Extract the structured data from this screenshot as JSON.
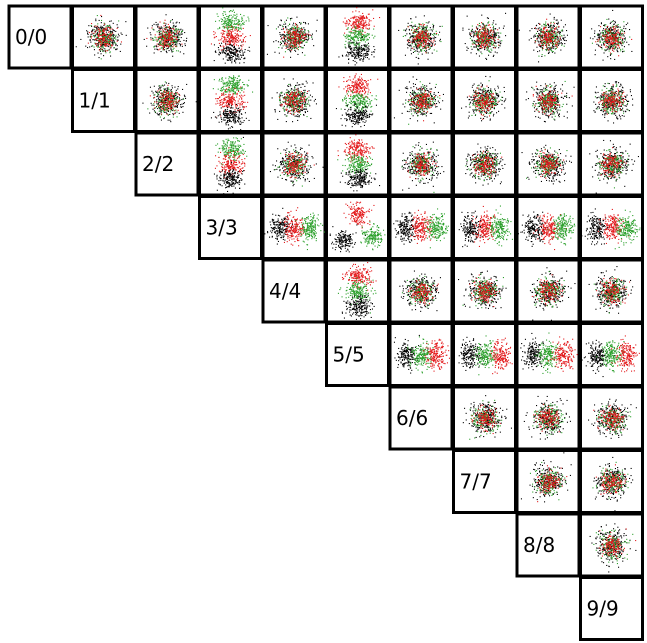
{
  "chart_data": {
    "type": "scatter",
    "title": "",
    "dimensions": [
      "0",
      "1",
      "2",
      "3",
      "4",
      "5",
      "6",
      "7",
      "8",
      "9"
    ],
    "diagonal_labels": [
      "0/0",
      "1/1",
      "2/2",
      "3/3",
      "4/4",
      "5/5",
      "6/6",
      "7/7",
      "8/8",
      "9/9"
    ],
    "layout": "upper-triangle scatter-plot matrix",
    "series": [
      {
        "color": "#000000"
      },
      {
        "color": "#e31a1c"
      },
      {
        "color": "#2ca02c"
      }
    ],
    "panels": [
      {
        "row": 0,
        "col": 1,
        "pattern": "overlap"
      },
      {
        "row": 0,
        "col": 2,
        "pattern": "overlap"
      },
      {
        "row": 0,
        "col": 3,
        "pattern": "vertical",
        "order": [
          "green",
          "red",
          "black"
        ]
      },
      {
        "row": 0,
        "col": 4,
        "pattern": "overlap"
      },
      {
        "row": 0,
        "col": 5,
        "pattern": "vertical",
        "order": [
          "red",
          "green",
          "black"
        ]
      },
      {
        "row": 0,
        "col": 6,
        "pattern": "overlap"
      },
      {
        "row": 0,
        "col": 7,
        "pattern": "overlap"
      },
      {
        "row": 0,
        "col": 8,
        "pattern": "overlap"
      },
      {
        "row": 0,
        "col": 9,
        "pattern": "overlap"
      },
      {
        "row": 1,
        "col": 2,
        "pattern": "overlap"
      },
      {
        "row": 1,
        "col": 3,
        "pattern": "vertical",
        "order": [
          "green",
          "red",
          "black"
        ]
      },
      {
        "row": 1,
        "col": 4,
        "pattern": "overlap"
      },
      {
        "row": 1,
        "col": 5,
        "pattern": "vertical",
        "order": [
          "red",
          "green",
          "black"
        ]
      },
      {
        "row": 1,
        "col": 6,
        "pattern": "overlap"
      },
      {
        "row": 1,
        "col": 7,
        "pattern": "overlap"
      },
      {
        "row": 1,
        "col": 8,
        "pattern": "overlap"
      },
      {
        "row": 1,
        "col": 9,
        "pattern": "overlap"
      },
      {
        "row": 2,
        "col": 3,
        "pattern": "vertical",
        "order": [
          "green",
          "red",
          "black"
        ]
      },
      {
        "row": 2,
        "col": 4,
        "pattern": "overlap"
      },
      {
        "row": 2,
        "col": 5,
        "pattern": "vertical",
        "order": [
          "red",
          "green",
          "black"
        ]
      },
      {
        "row": 2,
        "col": 6,
        "pattern": "overlap"
      },
      {
        "row": 2,
        "col": 7,
        "pattern": "overlap"
      },
      {
        "row": 2,
        "col": 8,
        "pattern": "overlap"
      },
      {
        "row": 2,
        "col": 9,
        "pattern": "overlap"
      },
      {
        "row": 3,
        "col": 4,
        "pattern": "horizontal",
        "order": [
          "black",
          "red",
          "green"
        ]
      },
      {
        "row": 3,
        "col": 5,
        "pattern": "triangle",
        "order": [
          "red",
          "black",
          "green"
        ]
      },
      {
        "row": 3,
        "col": 6,
        "pattern": "horizontal",
        "order": [
          "black",
          "red",
          "green"
        ]
      },
      {
        "row": 3,
        "col": 7,
        "pattern": "horizontal",
        "order": [
          "black",
          "red",
          "green"
        ]
      },
      {
        "row": 3,
        "col": 8,
        "pattern": "horizontal",
        "order": [
          "black",
          "red",
          "green"
        ]
      },
      {
        "row": 3,
        "col": 9,
        "pattern": "horizontal",
        "order": [
          "black",
          "red",
          "green"
        ]
      },
      {
        "row": 4,
        "col": 5,
        "pattern": "vertical",
        "order": [
          "red",
          "green",
          "black"
        ]
      },
      {
        "row": 4,
        "col": 6,
        "pattern": "overlap"
      },
      {
        "row": 4,
        "col": 7,
        "pattern": "overlap"
      },
      {
        "row": 4,
        "col": 8,
        "pattern": "overlap"
      },
      {
        "row": 4,
        "col": 9,
        "pattern": "overlap"
      },
      {
        "row": 5,
        "col": 6,
        "pattern": "horizontal",
        "order": [
          "black",
          "green",
          "red"
        ]
      },
      {
        "row": 5,
        "col": 7,
        "pattern": "horizontal",
        "order": [
          "black",
          "green",
          "red"
        ]
      },
      {
        "row": 5,
        "col": 8,
        "pattern": "horizontal",
        "order": [
          "black",
          "green",
          "red"
        ]
      },
      {
        "row": 5,
        "col": 9,
        "pattern": "horizontal",
        "order": [
          "black",
          "green",
          "red"
        ]
      },
      {
        "row": 6,
        "col": 7,
        "pattern": "overlap"
      },
      {
        "row": 6,
        "col": 8,
        "pattern": "overlap"
      },
      {
        "row": 6,
        "col": 9,
        "pattern": "overlap"
      },
      {
        "row": 7,
        "col": 8,
        "pattern": "overlap"
      },
      {
        "row": 7,
        "col": 9,
        "pattern": "overlap"
      },
      {
        "row": 8,
        "col": 9,
        "pattern": "overlap"
      }
    ],
    "grid": false
  }
}
